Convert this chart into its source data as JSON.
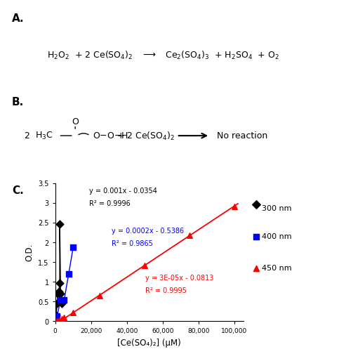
{
  "eq_black": "y = 0.001x - 0.0354",
  "r2_black": "R² = 0.9996",
  "eq_blue": "y = 0.0002x - 0.5386",
  "r2_blue": "R² = 0.9865",
  "eq_red": "y = 3E-05x - 0.0813",
  "r2_red": "R² = 0.9995",
  "ylabel": "O.D.",
  "xlabel": "[Ce(SO₄)₂] (μM)",
  "xlim": [
    0,
    105000
  ],
  "ylim": [
    0,
    3.5
  ],
  "legend_300": "300 nm",
  "legend_400": "400 nm",
  "legend_450": "450 nm",
  "black_x": [
    500,
    1000,
    1500,
    2000,
    2500,
    3000,
    3500
  ],
  "black_y": [
    0.15,
    0.45,
    0.68,
    0.75,
    0.97,
    0.7,
    0.45
  ],
  "black_high_x": 2500,
  "black_high_y": 2.47,
  "blue_x": [
    1000,
    3000,
    5000,
    7500,
    10000
  ],
  "blue_y": [
    0.13,
    0.55,
    0.55,
    1.2,
    1.87
  ],
  "red_x": [
    1000,
    2000,
    3500,
    5000,
    10000,
    25000,
    50000,
    75000,
    100000
  ],
  "red_y": [
    0.0,
    0.02,
    0.06,
    0.1,
    0.22,
    0.65,
    1.42,
    2.18,
    2.9
  ],
  "background": "#ffffff"
}
